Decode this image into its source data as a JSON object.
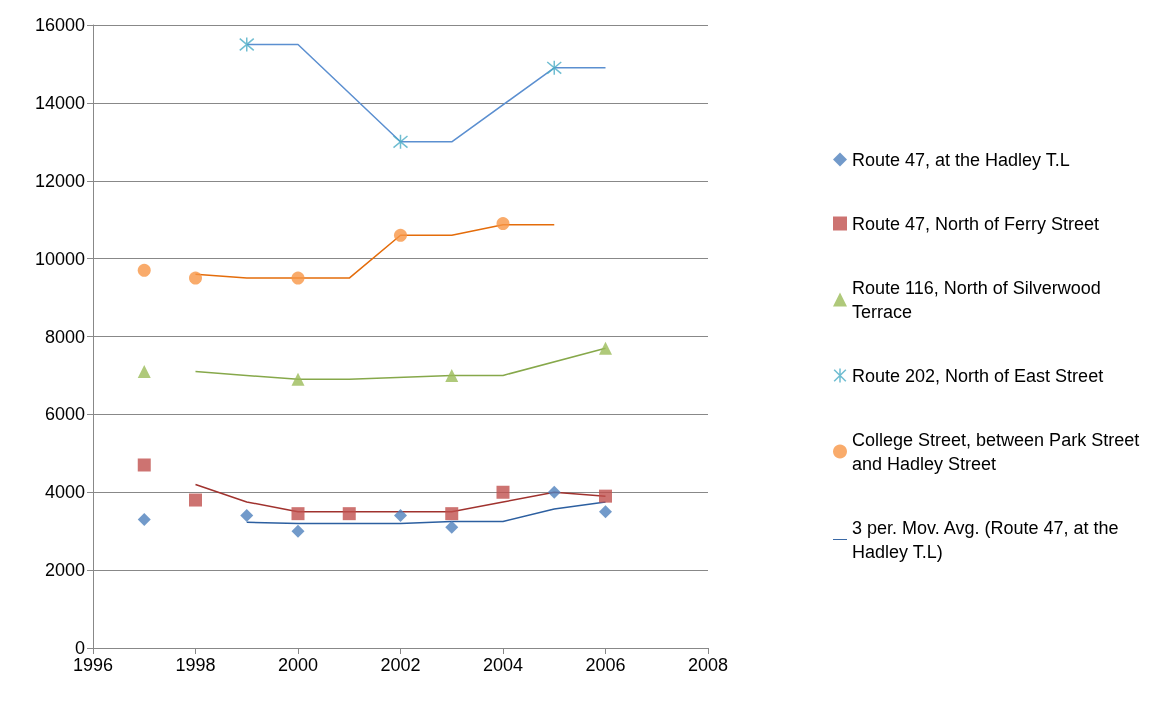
{
  "chart_data": {
    "type": "scatter",
    "xlim": [
      1996,
      2008
    ],
    "xticks": [
      1996,
      1998,
      2000,
      2002,
      2004,
      2006,
      2008
    ],
    "ylim": [
      0,
      16000
    ],
    "yticks": [
      0,
      2000,
      4000,
      6000,
      8000,
      10000,
      12000,
      14000,
      16000
    ],
    "grid": "y",
    "legend": "right",
    "series": [
      {
        "name": "Route 47, at the Hadley T.L",
        "marker": "diamond",
        "color": "#4f81bd",
        "x": [
          1997,
          1999,
          2000,
          2002,
          2003,
          2005,
          2006
        ],
        "values": [
          3300,
          3400,
          3000,
          3400,
          3100,
          4000,
          3500
        ]
      },
      {
        "name": "Route 47, North of Ferry Street",
        "marker": "square",
        "color": "#c0504d",
        "x": [
          1997,
          1998,
          2000,
          2001,
          2003,
          2004,
          2006
        ],
        "values": [
          4700,
          3800,
          3450,
          3450,
          3450,
          4000,
          3900
        ]
      },
      {
        "name": "Route 116, North of Silverwood Terrace",
        "marker": "triangle",
        "color": "#9bbb59",
        "x": [
          1997,
          2000,
          2003,
          2006
        ],
        "values": [
          7100,
          6900,
          7000,
          7700
        ]
      },
      {
        "name": "Route 202, North of East Street",
        "marker": "cross",
        "color": "#4bacc6",
        "x": [
          1999,
          2002,
          2005
        ],
        "values": [
          15500,
          13000,
          14900
        ]
      },
      {
        "name": "College Street, between Park Street and Hadley Street",
        "marker": "circle",
        "color": "#f79646",
        "x": [
          1997,
          1998,
          2000,
          2002,
          2004
        ],
        "values": [
          9700,
          9500,
          9500,
          10600,
          10900
        ]
      },
      {
        "name": "3 per. Mov. Avg. (Route 47, at the Hadley T.L)",
        "type": "line",
        "marker": "none",
        "color": "#2c5fa0",
        "x": [
          1999,
          2000,
          2001,
          2002,
          2003,
          2004,
          2005,
          2006
        ],
        "values": [
          3230,
          3200,
          3200,
          3200,
          3250,
          3250,
          3570,
          3750
        ]
      },
      {
        "type": "line",
        "marker": "none",
        "color": "#a0322e",
        "x": [
          1998,
          1999,
          2000,
          2001,
          2002,
          2003,
          2004,
          2005,
          2006
        ],
        "values": [
          4200,
          3750,
          3500,
          3500,
          3500,
          3500,
          3750,
          4000,
          3900
        ]
      },
      {
        "type": "line",
        "marker": "none",
        "color": "#86a84a",
        "x": [
          1998,
          2000,
          2001,
          2003,
          2004,
          2006
        ],
        "values": [
          7100,
          6900,
          6900,
          7000,
          7000,
          7700
        ]
      },
      {
        "type": "line",
        "marker": "none",
        "color": "#5b8fd0",
        "x": [
          1999,
          2000,
          2002,
          2003,
          2005,
          2006
        ],
        "values": [
          15500,
          15500,
          13000,
          13000,
          14900,
          14900
        ]
      },
      {
        "type": "line",
        "marker": "none",
        "color": "#e46c0a",
        "x": [
          1998,
          1999,
          2000,
          2001,
          2002,
          2003,
          2004,
          2005
        ],
        "values": [
          9600,
          9500,
          9500,
          9500,
          10600,
          10600,
          10870,
          10870
        ]
      }
    ]
  }
}
